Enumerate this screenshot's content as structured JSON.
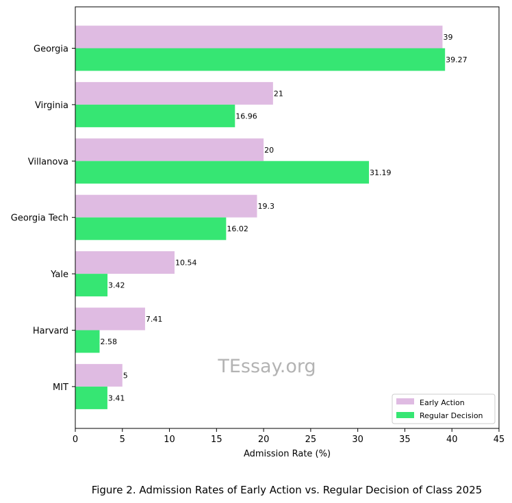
{
  "chart_data": {
    "type": "bar",
    "orientation": "horizontal",
    "categories": [
      "Georgia",
      "Virginia",
      "Villanova",
      "Georgia Tech",
      "Yale",
      "Harvard",
      "MIT"
    ],
    "series": [
      {
        "name": "Early Action",
        "color": "#dfbbe2",
        "values": [
          39,
          21,
          20,
          19.3,
          10.54,
          7.41,
          5
        ],
        "labels": [
          "39",
          "21",
          "20",
          "19.3",
          "10.54",
          "7.41",
          "5"
        ]
      },
      {
        "name": "Regular Decision",
        "color": "#36e673",
        "values": [
          39.27,
          16.96,
          31.19,
          16.02,
          3.42,
          2.58,
          3.41
        ],
        "labels": [
          "39.27",
          "16.96",
          "31.19",
          "16.02",
          "3.42",
          "2.58",
          "3.41"
        ]
      }
    ],
    "xlabel": "Admission Rate (%)",
    "ylabel": "",
    "xlim": [
      0,
      45
    ],
    "xticks": [
      "0",
      "5",
      "10",
      "15",
      "20",
      "25",
      "30",
      "35",
      "40",
      "45"
    ],
    "grid": false,
    "legend_position": "bottom-right",
    "watermark": "TEssay.org",
    "caption": "Figure 2. Admission Rates of Early Action vs. Regular Decision of Class 2025"
  }
}
